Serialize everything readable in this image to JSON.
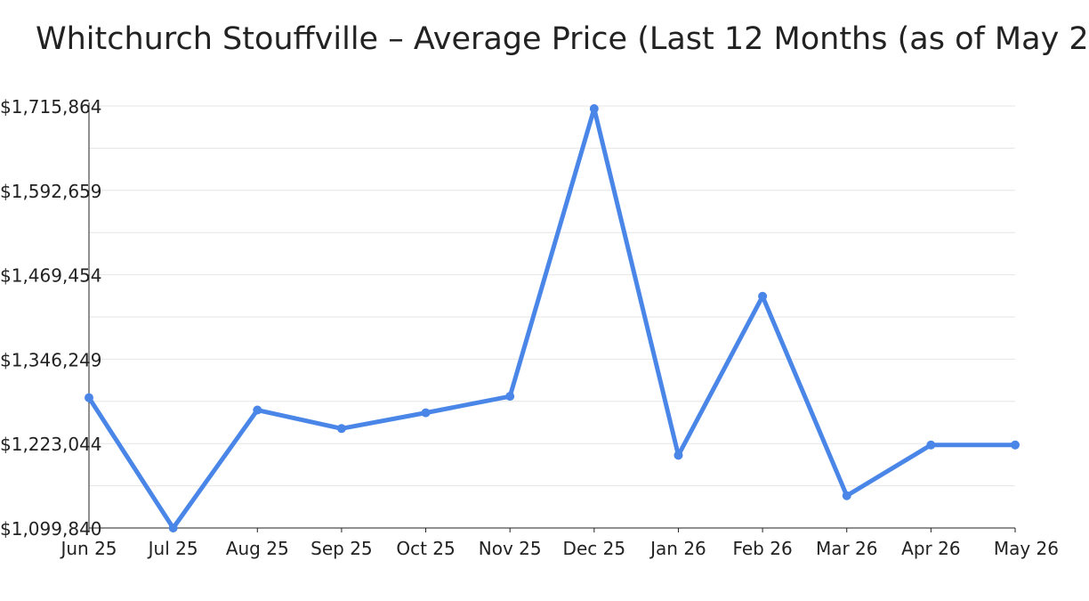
{
  "chart_data": {
    "type": "line",
    "title": "Whitchurch Stouffville – Average Price (Last 12 Months (as of May 2",
    "xlabel": "",
    "ylabel": "",
    "categories": [
      "Jun 25",
      "Jul 25",
      "Aug 25",
      "Sep 25",
      "Oct 25",
      "Nov 25",
      "Dec 25",
      "Jan 26",
      "Feb 26",
      "Mar 26",
      "Apr 26",
      "May 26"
    ],
    "series": [
      {
        "values": [
          1290000,
          1099840,
          1272000,
          1245000,
          1268000,
          1292000,
          1712000,
          1206000,
          1438000,
          1147000,
          1221000,
          1221000
        ]
      }
    ],
    "ylim": [
      1099840,
      1715864
    ],
    "yticks": [
      1099840,
      1223044,
      1346249,
      1469454,
      1592659,
      1715864
    ],
    "ytick_labels": [
      "$1,099,840",
      "$1,223,044",
      "$1,346,249",
      "$1,469,454",
      "$1,592,659",
      "$1,715,864"
    ],
    "grid": true,
    "line_color": "#4a86e8",
    "grid_color": "#e6e6e6",
    "axis_color": "#222222"
  }
}
